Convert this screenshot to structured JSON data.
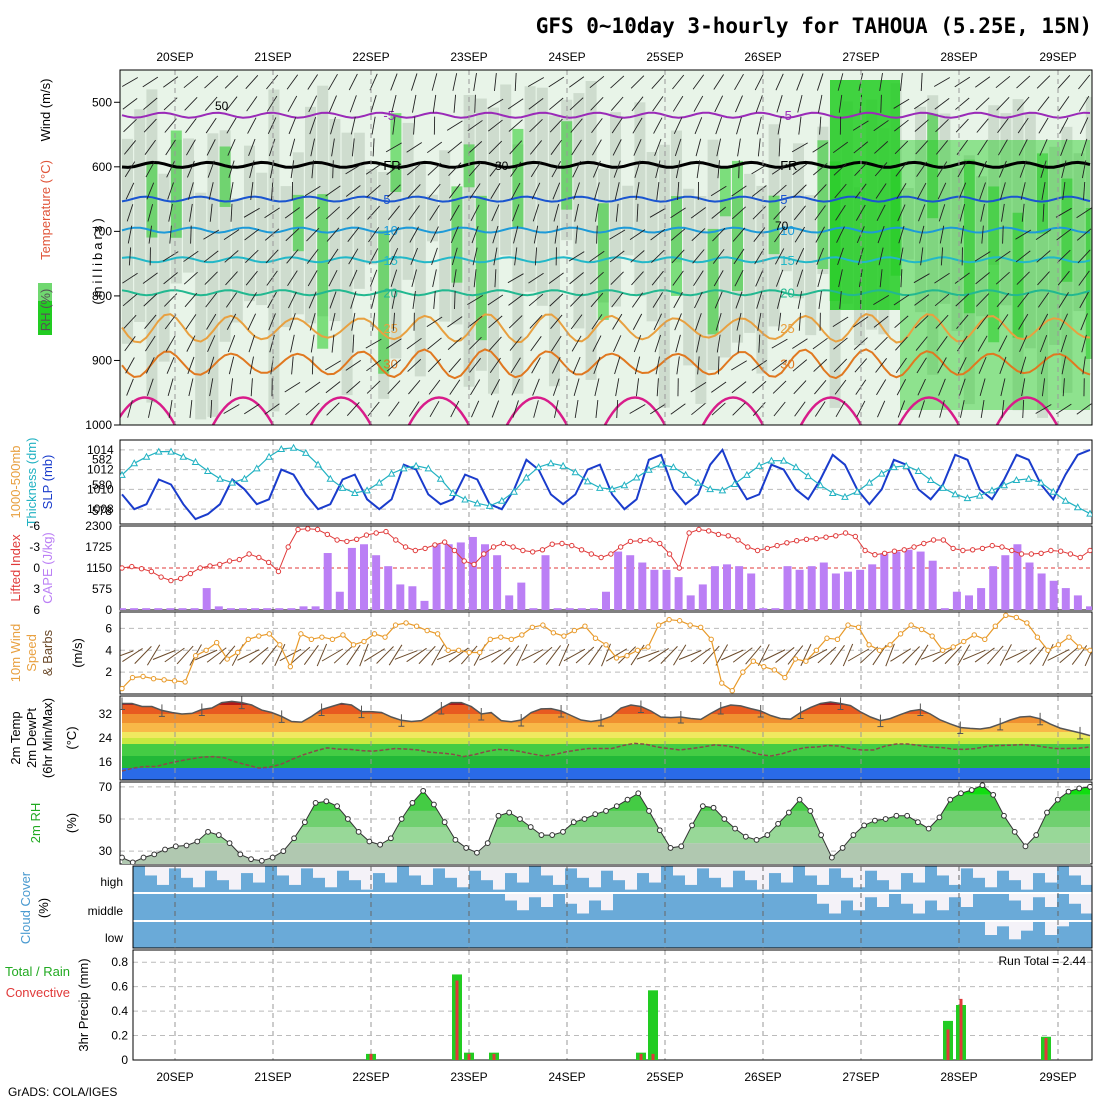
{
  "title": "GFS 0~10day 3-hourly for TAHOUA (5.25E, 15N)",
  "credit": "GrADS: COLA/IGES",
  "dates": [
    "20SEP",
    "21SEP",
    "22SEP",
    "23SEP",
    "24SEP",
    "25SEP",
    "26SEP",
    "27SEP",
    "28SEP",
    "29SEP"
  ],
  "colors": {
    "rh_green": "#22cc22",
    "rh_light": "#e8f4e8",
    "rh_gray": "#b8c8b8",
    "slp": "#1a3ccc",
    "thickness": "#22b2c2",
    "lifted_index": "#e03a3a",
    "cape": "#bb7ff5",
    "wind_speed": "#e89a2a",
    "barbs": "#6b4a2a",
    "rh2m": "#22cc22",
    "cloud_cover": "#6aaad8",
    "rain_total": "#22cc22",
    "rain_conv": "#e03a3a"
  },
  "chart_data": [
    {
      "type": "contour",
      "panel": "cross-section",
      "ylabels": [
        "RH (%)",
        "Temperature (°C)",
        "Wind (m/s)"
      ],
      "yunit": "(millibars)",
      "y_ticks": [
        "500",
        "600",
        "700",
        "800",
        "900",
        "1000"
      ],
      "ylim": [
        1000,
        450
      ],
      "temp_isotherms": [
        {
          "label": "-5",
          "level_mb": 520,
          "color": "#9a2ab8"
        },
        {
          "label": "FR",
          "level_mb": 597,
          "color": "#000000"
        },
        {
          "label": "5",
          "level_mb": 650,
          "color": "#1a55d0"
        },
        {
          "label": "10",
          "level_mb": 698,
          "color": "#1d9ad8"
        },
        {
          "label": "15",
          "level_mb": 744,
          "color": "#22b8c8"
        },
        {
          "label": "20",
          "level_mb": 795,
          "color": "#22b890"
        },
        {
          "label": "25",
          "level_mb": 850,
          "color": "#e8a040"
        },
        {
          "label": "30",
          "level_mb": 905,
          "color": "#e07820"
        }
      ],
      "rh_contour_labels": [
        "50",
        "30",
        "70"
      ]
    },
    {
      "type": "line",
      "panel": "slp-thickness",
      "ylabels": [
        "1000-500mb",
        "Thickness (dm)",
        "SLP (mb)"
      ],
      "left_ticks": [
        "582",
        "580",
        "578"
      ],
      "right_ticks": [
        "1014",
        "1012",
        "1010",
        "1008"
      ],
      "series": [
        {
          "name": "SLP (mb)",
          "values": [
            1009.5,
            1008.0,
            1008.5,
            1011.0,
            1010.5,
            1008.5,
            1007.0,
            1007.5,
            1008.5,
            1011.0,
            1010.0,
            1008.5,
            1009.0,
            1012.0,
            1011.5,
            1009.5,
            1008.0,
            1008.5,
            1011.0,
            1011.5,
            1009.0,
            1008.0,
            1009.0,
            1012.5,
            1012.0,
            1009.5,
            1008.5,
            1009.0,
            1011.5,
            1011.0,
            1008.5,
            1008.0,
            1010.0,
            1013.0,
            1012.0,
            1009.5,
            1008.5,
            1009.5,
            1012.0,
            1012.5,
            1009.5,
            1008.0,
            1009.0,
            1013.0,
            1013.5,
            1010.0,
            1008.5,
            1009.5,
            1012.5,
            1014.0,
            1011.0,
            1009.0,
            1009.5,
            1012.5,
            1012.0,
            1010.0,
            1009.0,
            1011.0,
            1013.5,
            1012.5,
            1010.0,
            1008.5,
            1010.0,
            1013.0,
            1012.5,
            1010.0,
            1009.0,
            1010.5,
            1013.5,
            1013.0,
            1010.0,
            1009.0,
            1011.0,
            1013.5,
            1013.0,
            1010.5,
            1009.0,
            1011.5,
            1013.5,
            1014.0
          ]
        },
        {
          "name": "1000-500mb Thickness (dm)",
          "values": [
            580.8,
            581.7,
            582.2,
            582.6,
            582.6,
            582.2,
            581.8,
            581.1,
            580.5,
            580.2,
            580.5,
            581.3,
            582.2,
            582.8,
            582.9,
            582.5,
            581.6,
            580.5,
            579.8,
            579.4,
            579.6,
            580.2,
            580.9,
            581.3,
            581.5,
            581.3,
            580.5,
            579.4,
            578.9,
            578.6,
            578.4,
            578.8,
            579.5,
            580.6,
            581.4,
            581.7,
            581.5,
            581.0,
            580.3,
            579.8,
            579.7,
            580.0,
            580.6,
            581.2,
            581.6,
            581.4,
            580.8,
            580.2,
            579.7,
            579.6,
            580.1,
            580.8,
            581.5,
            581.9,
            581.9,
            581.4,
            580.7,
            580.0,
            579.4,
            579.1,
            579.5,
            580.2,
            580.9,
            581.4,
            581.5,
            581.1,
            580.4,
            579.8,
            579.3,
            579.0,
            579.2,
            579.6,
            580.0,
            580.4,
            580.5,
            580.2,
            579.5,
            578.8,
            578.3,
            577.8
          ]
        }
      ]
    },
    {
      "type": "bar",
      "panel": "cape-lifted-index",
      "ylabels": [
        "Lifted Index",
        "CAPE (J/kg)"
      ],
      "left_ticks": [
        "-6",
        "-3",
        "0",
        "3",
        "6"
      ],
      "right_ticks": [
        "2300",
        "1725",
        "1150",
        "575",
        "0"
      ],
      "series": [
        {
          "name": "CAPE (J/kg)",
          "values": [
            50,
            50,
            50,
            50,
            50,
            50,
            50,
            600,
            100,
            50,
            50,
            50,
            50,
            50,
            50,
            100,
            100,
            1560,
            500,
            1700,
            1800,
            1500,
            1200,
            700,
            650,
            250,
            1800,
            1800,
            1850,
            2000,
            1800,
            1500,
            400,
            750,
            50,
            1500,
            50,
            50,
            50,
            50,
            500,
            1600,
            1500,
            1300,
            1100,
            1100,
            900,
            400,
            700,
            1200,
            1250,
            1200,
            1000,
            50,
            50,
            1200,
            1100,
            1200,
            1300,
            1000,
            1050,
            1100,
            1250,
            1550,
            1600,
            1650,
            1600,
            1350,
            50,
            500,
            400,
            600,
            1200,
            1500,
            1800,
            1300,
            1000,
            800,
            600,
            400,
            100
          ]
        },
        {
          "name": "Lifted Index",
          "values": [
            0.0,
            -0.2,
            0.1,
            0.5,
            1.3,
            1.8,
            1.5,
            0.8,
            0.0,
            -0.3,
            -0.5,
            -1.0,
            -1.2,
            -2.0,
            -1.5,
            -0.8,
            0.5,
            -3.0,
            -5.5,
            -5.6,
            -5.5,
            -4.8,
            -4.0,
            -3.8,
            -4.1,
            -4.7,
            -5.0,
            -5.2,
            -4.0,
            -3.0,
            -2.5,
            -2.8,
            -3.3,
            -3.7,
            -2.5,
            -1.0,
            -0.5,
            -2.0,
            -3.0,
            -3.5,
            -3.0,
            -2.5,
            -2.3,
            -2.6,
            -3.4,
            -3.5,
            -3.2,
            -2.6,
            -2.0,
            -1.5,
            -2.0,
            -3.0,
            -3.8,
            -3.9,
            -4.0,
            -3.5,
            -2.0,
            0.0,
            -5.0,
            -5.5,
            -5.3,
            -4.8,
            -4.6,
            -4.0,
            -3.0,
            -2.5,
            -2.8,
            -3.2,
            -3.6,
            -3.9,
            -4.1,
            -4.2,
            -4.4,
            -4.6,
            -5.0,
            -4.5,
            -2.5,
            -1.9,
            -2.1,
            -2.4,
            -2.6,
            -3.0,
            -3.5,
            -4.0,
            -4.0,
            -2.8,
            -2.5,
            -2.6,
            -2.8,
            -3.2,
            -3.0,
            -2.5,
            -2.0,
            -2.0,
            -2.1,
            -2.5,
            -2.4,
            -2.0,
            -1.5,
            -2.5
          ]
        }
      ]
    },
    {
      "type": "line",
      "panel": "10m-wind",
      "ylabels": [
        "10m Wind",
        "Speed",
        "& Barbs"
      ],
      "yunit": "(m/s)",
      "y_ticks": [
        "6",
        "4",
        "2"
      ],
      "ylim": [
        0,
        7.5
      ],
      "series": [
        {
          "name": "10m Wind Speed",
          "values": [
            0.5,
            1.5,
            1.6,
            1.4,
            1.3,
            1.2,
            1.1,
            3.5,
            4.0,
            4.7,
            3.2,
            3.8,
            5.0,
            5.3,
            5.5,
            4.5,
            2.5,
            5.5,
            5.0,
            5.2,
            5.0,
            5.4,
            4.5,
            4.8,
            5.5,
            5.2,
            6.3,
            6.5,
            6.2,
            5.8,
            5.5,
            4.0,
            4.0,
            3.8,
            3.8,
            5.0,
            5.2,
            5.0,
            5.4,
            6.1,
            6.3,
            5.6,
            5.3,
            5.8,
            6.2,
            5.1,
            4.5,
            3.3,
            3.5,
            4.0,
            4.3,
            6.3,
            6.8,
            6.7,
            6.3,
            6.1,
            5.0,
            1.0,
            0.3,
            2.0,
            3.0,
            2.5,
            2.2,
            1.5,
            3.2,
            3.0,
            4.0,
            5.1,
            5.0,
            6.3,
            6.1,
            4.5,
            4.0,
            4.5,
            5.5,
            6.3,
            5.9,
            5.3,
            4.0,
            4.3,
            4.8,
            5.4,
            5.0,
            6.2,
            7.2,
            7.0,
            6.5,
            5.2,
            4.0,
            4.5,
            5.2,
            4.3,
            4.0
          ]
        }
      ]
    },
    {
      "type": "area",
      "panel": "2m-temp",
      "ylabels": [
        "2m Temp",
        "2m DewPt",
        "(6hr Min/Max)"
      ],
      "yunit": "(°C)",
      "y_ticks": [
        "32",
        "24",
        "16"
      ],
      "ylim": [
        10,
        38
      ],
      "series": [
        {
          "name": "2m Temp",
          "values": [
            35.5,
            35.5,
            34.5,
            34.5,
            33.2,
            32.5,
            32.0,
            32.2,
            33.5,
            34.0,
            35.8,
            36.2,
            35.8,
            35.0,
            33.3,
            32.5,
            31.2,
            29.5,
            29.3,
            31.2,
            33.5,
            34.5,
            35.5,
            35.0,
            32.8,
            32.8,
            32.5,
            31.0,
            29.9,
            29.5,
            29.8,
            31.8,
            34.0,
            35.8,
            35.8,
            34.5,
            32.0,
            32.5,
            29.8,
            29.4,
            30.0,
            32.5,
            33.7,
            33.8,
            33.0,
            31.5,
            30.0,
            29.5,
            30.0,
            31.2,
            34.0,
            35.0,
            34.5,
            33.0,
            31.0,
            30.8,
            31.0,
            30.5,
            30.2,
            32.2,
            34.0,
            35.0,
            34.7,
            33.8,
            33.0,
            31.5,
            30.5,
            30.3,
            32.5,
            34.2,
            35.5,
            36.0,
            35.5,
            34.8,
            32.7,
            31.0,
            29.8,
            30.5,
            31.8,
            33.0,
            33.5,
            32.0,
            30.0,
            28.7,
            27.5,
            27.2,
            27.0,
            27.5,
            28.7,
            30.0,
            31.0,
            31.2,
            30.4,
            28.7,
            27.3,
            26.5,
            25.7,
            24.8
          ]
        },
        {
          "name": "2m DewPt",
          "values": [
            13.0,
            14.0,
            14.5,
            14.5,
            15.5,
            16.3,
            17.0,
            17.6,
            17.8,
            17.4,
            16.0,
            15.0,
            14.0,
            14.3,
            15.3,
            17.0,
            18.5,
            19.7,
            20.7,
            20.3,
            20.2,
            19.8,
            19.6,
            20.0,
            20.5,
            20.3,
            20.0,
            19.3,
            19.0,
            18.6,
            17.8,
            18.5,
            19.5,
            20.2,
            20.0,
            19.5,
            18.7,
            18.0,
            18.5,
            19.4,
            20.0,
            20.5,
            20.5,
            20.5,
            21.5,
            22.2,
            21.9,
            21.0,
            20.5,
            20.0,
            20.5,
            21.0,
            21.7,
            21.4,
            20.8,
            19.6,
            18.5,
            18.0,
            18.8,
            20.0,
            20.8,
            21.0,
            21.5,
            21.3,
            20.4,
            20.0,
            20.0,
            21.3,
            22.0,
            22.0,
            21.5,
            21.0,
            20.8,
            20.3,
            20.2,
            20.5,
            21.3,
            21.5,
            21.6,
            21.8,
            21.6,
            21.0,
            20.5,
            20.5,
            20.6,
            21.0
          ]
        }
      ]
    },
    {
      "type": "area",
      "panel": "2m-rh",
      "ylabels": [
        "2m RH"
      ],
      "yunit": "(%)",
      "y_ticks": [
        "70",
        "50",
        "30"
      ],
      "ylim": [
        22,
        73
      ],
      "series": [
        {
          "name": "2m RH",
          "values": [
            26.0,
            23.0,
            26.0,
            28.0,
            31.0,
            33.0,
            33.5,
            36.0,
            42.0,
            40.0,
            35.0,
            28.0,
            25.0,
            24.0,
            26.0,
            30.0,
            38.0,
            48.0,
            60.0,
            61.0,
            58.0,
            50.0,
            42.0,
            36.0,
            34.0,
            38.0,
            50.0,
            60.0,
            67.5,
            59.0,
            48.0,
            37.0,
            32.0,
            29.0,
            35.0,
            52.0,
            54.0,
            50.0,
            45.0,
            40.0,
            40.0,
            42.0,
            48.0,
            50.0,
            53.0,
            55.0,
            58.0,
            62.0,
            66.0,
            55.0,
            43.0,
            32.0,
            33.0,
            46.0,
            58.0,
            57.0,
            50.0,
            44.0,
            39.0,
            37.0,
            40.0,
            47.0,
            54.0,
            62.0,
            55.0,
            40.0,
            26.0,
            32.0,
            40.0,
            46.0,
            49.0,
            50.0,
            52.0,
            52.0,
            48.0,
            44.0,
            51.0,
            62.0,
            66.0,
            68.0,
            71.0,
            65.0,
            52.0,
            42.0,
            33.0,
            40.0,
            54.0,
            62.0,
            67.0,
            69.0,
            70.0
          ]
        }
      ]
    },
    {
      "type": "bar",
      "panel": "cloud-cover",
      "ylabels": [
        "Cloud Cover"
      ],
      "yunit": "(%)",
      "y_ticks": [
        "high",
        "middle",
        "low"
      ]
    },
    {
      "type": "bar",
      "panel": "precip",
      "ylabels": [
        "Total / Rain",
        "Convective",
        "3hr Precip (mm)"
      ],
      "y_ticks": [
        "0.8",
        "0.6",
        "0.4",
        "0.2",
        "0"
      ],
      "ylim": [
        0,
        0.9
      ],
      "annotation": "Run Total = 2.44",
      "series": [
        {
          "name": "Total / Rain",
          "values": [
            0.05,
            0.7,
            0.06,
            0.06,
            0.06,
            0.57,
            0.32,
            0.45,
            0.19
          ]
        },
        {
          "name": "Convective",
          "values": [
            0.05,
            0.65,
            0.05,
            0.05,
            0.05,
            0.05,
            0.25,
            0.5,
            0.18
          ]
        }
      ]
    }
  ]
}
